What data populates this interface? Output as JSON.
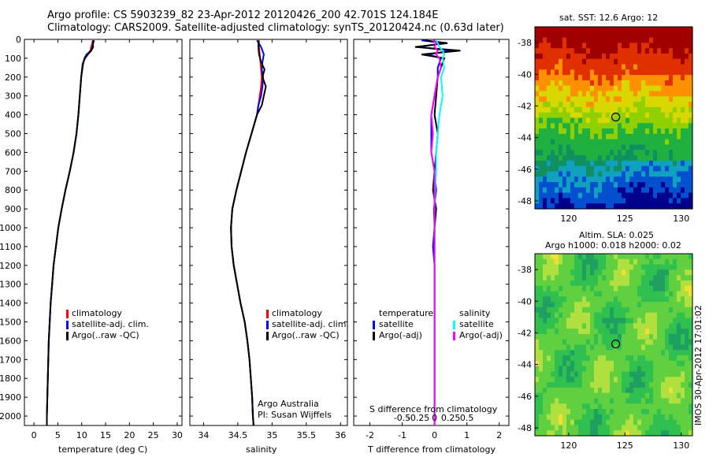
{
  "title_line1": "Argo profile: CS 5903239_82 23-Apr-2012 20120426_200 42.701S 124.184E",
  "title_line2": "Climatology: CARS2009. Satellite-adjusted climatology: synTS_20120424.nc (0.63d later)",
  "stamp": "IMOS 30-Apr-2012 17:01:02",
  "colors": {
    "climatology": "#ff0000",
    "satellite": "#0000ff",
    "argo": "#000000",
    "sal_satellite": "#00ffff",
    "sal_argo": "#ff00ff"
  },
  "chart_data": [
    {
      "type": "line",
      "id": "temperature",
      "xlabel": "temperature (deg C)",
      "xlim": [
        -2,
        31
      ],
      "xticks": [
        0,
        5,
        10,
        15,
        20,
        25,
        30
      ],
      "ylim": [
        2050,
        0
      ],
      "yticks": [
        0,
        100,
        200,
        300,
        400,
        500,
        600,
        700,
        800,
        900,
        1000,
        1100,
        1200,
        1300,
        1400,
        1500,
        1600,
        1700,
        1800,
        1900,
        2000
      ],
      "legend": [
        "climatology",
        "satellite-adj. clim.",
        "Argo(..raw -QC)"
      ],
      "depth": [
        5,
        20,
        40,
        60,
        80,
        100,
        130,
        200,
        300,
        400,
        500,
        600,
        700,
        800,
        900,
        1000,
        1100,
        1200,
        1300,
        1400,
        1500,
        1600,
        1700,
        1800,
        1900,
        2000,
        2050
      ],
      "series": [
        {
          "name": "climatology",
          "values": [
            12.3,
            12.2,
            12.0,
            11.8,
            11.2,
            10.6,
            10.2,
            9.9,
            9.6,
            9.3,
            8.9,
            8.3,
            7.5,
            6.6,
            5.8,
            5.1,
            4.6,
            4.1,
            3.8,
            3.5,
            3.3,
            3.1,
            3.0,
            2.9,
            2.8,
            2.7,
            2.7
          ]
        },
        {
          "name": "satellite-adj. clim.",
          "values": [
            12.6,
            12.4,
            12.2,
            12.0,
            11.3,
            10.7,
            10.2,
            9.9,
            9.6,
            9.3,
            8.9,
            8.3,
            7.5,
            6.6,
            5.8,
            5.1,
            4.6,
            4.1,
            3.8,
            3.5,
            3.3,
            3.1,
            3.0,
            2.9,
            2.8,
            2.7,
            2.7
          ]
        },
        {
          "name": "Argo(..raw -QC)",
          "values": [
            12.5,
            12.3,
            12.4,
            12.0,
            11.0,
            10.6,
            10.3,
            9.9,
            9.6,
            9.3,
            8.9,
            8.3,
            7.5,
            6.6,
            5.8,
            5.1,
            4.6,
            4.1,
            3.8,
            3.5,
            3.3,
            3.1,
            3.0,
            2.9,
            2.8,
            2.7,
            2.7
          ]
        }
      ]
    },
    {
      "type": "line",
      "id": "salinity",
      "xlabel": "salinity",
      "xlim": [
        33.8,
        36.1
      ],
      "xticks": [
        34,
        34.5,
        35,
        35.5,
        36
      ],
      "ylim": [
        2050,
        0
      ],
      "legend": [
        "climatology",
        "satellite-adj. clim.",
        "Argo(..raw -QC)"
      ],
      "annotation": [
        "Argo Australia",
        "PI: Susan Wijffels"
      ],
      "depth": [
        5,
        40,
        80,
        120,
        160,
        200,
        250,
        300,
        350,
        400,
        500,
        600,
        700,
        800,
        900,
        1000,
        1100,
        1200,
        1300,
        1400,
        1500,
        1600,
        1700,
        1800,
        1900,
        2000,
        2050
      ],
      "series": [
        {
          "name": "climatology",
          "values": [
            34.81,
            34.81,
            34.82,
            34.83,
            34.84,
            34.85,
            34.84,
            34.82,
            34.8,
            34.78,
            34.7,
            34.62,
            34.55,
            34.48,
            34.42,
            34.4,
            34.41,
            34.44,
            34.49,
            34.54,
            34.6,
            34.64,
            34.67,
            34.69,
            34.71,
            34.72,
            34.73
          ]
        },
        {
          "name": "satellite-adj. clim.",
          "values": [
            34.78,
            34.84,
            34.88,
            34.86,
            34.85,
            34.87,
            34.86,
            34.84,
            34.8,
            34.78,
            34.7,
            34.62,
            34.55,
            34.48,
            34.42,
            34.4,
            34.41,
            34.44,
            34.49,
            34.54,
            34.6,
            34.64,
            34.67,
            34.69,
            34.71,
            34.72,
            34.73
          ]
        },
        {
          "name": "Argo(..raw -QC)",
          "values": [
            34.8,
            34.8,
            34.81,
            34.84,
            34.89,
            34.86,
            34.91,
            34.88,
            34.85,
            34.78,
            34.7,
            34.62,
            34.55,
            34.48,
            34.42,
            34.4,
            34.41,
            34.44,
            34.49,
            34.54,
            34.6,
            34.64,
            34.67,
            34.69,
            34.71,
            34.72,
            34.73
          ]
        }
      ]
    },
    {
      "type": "line",
      "id": "difference",
      "xlabel": "T difference from climatology",
      "xlabel2": "S difference from climatology",
      "xlim": [
        -2.5,
        2.3
      ],
      "xticks": [
        -2,
        -1,
        0,
        1,
        2
      ],
      "s_ticks": [
        "-0.5",
        "-0.25",
        "0",
        "0.25",
        "0.5"
      ],
      "s_tick_values": [
        -1,
        -0.5,
        0,
        0.5,
        1
      ],
      "ylim": [
        2050,
        0
      ],
      "legend_titles": [
        "temperature",
        "salinity"
      ],
      "legend": [
        "satellite",
        "Argo(-adj)",
        "satellite",
        "Argo(-adj)"
      ],
      "depth": [
        5,
        20,
        40,
        60,
        80,
        100,
        150,
        200,
        300,
        400,
        500,
        600,
        700,
        800,
        900,
        1000,
        1100,
        1200,
        1300,
        1400,
        1500,
        1600,
        1700,
        1800,
        1900,
        2000,
        2050
      ],
      "series": [
        {
          "name": "T satellite",
          "values": [
            -0.4,
            0.3,
            -0.5,
            0.5,
            -0.2,
            0.2,
            0.1,
            0.1,
            0.0,
            -0.1,
            -0.1,
            -0.1,
            0.0,
            0.05,
            -0.02,
            0.0,
            -0.05,
            0.0,
            0.0,
            0.0,
            0.0,
            0.0,
            0.0,
            0.0,
            0.0,
            0.0,
            0.0
          ]
        },
        {
          "name": "T Argo(-adj)",
          "values": [
            -0.3,
            0.4,
            -0.6,
            0.8,
            -0.4,
            0.3,
            0.2,
            0.1,
            0.05,
            0.0,
            0.1,
            0.05,
            0.0,
            -0.05,
            0.05,
            0.0,
            0.0,
            0.0,
            0.0,
            0.0,
            0.0,
            0.0,
            0.0,
            0.0,
            0.0,
            0.0,
            0.0
          ]
        },
        {
          "name": "S satellite",
          "values": [
            0.05,
            0.1,
            0.15,
            0.25,
            0.3,
            0.25,
            0.3,
            0.2,
            0.25,
            0.15,
            0.1,
            0.05,
            0.05,
            0.02,
            0.0,
            0.0,
            0.0,
            0.0,
            0.0,
            0.0,
            0.0,
            0.0,
            0.0,
            0.0,
            0.0,
            0.0,
            0.0
          ]
        },
        {
          "name": "S Argo(-adj)",
          "values": [
            -0.05,
            0.05,
            0.0,
            0.1,
            0.05,
            0.15,
            0.2,
            0.1,
            0.0,
            -0.1,
            -0.05,
            -0.1,
            0.0,
            0.0,
            0.0,
            0.0,
            0.0,
            0.0,
            0.0,
            0.0,
            0.0,
            0.0,
            0.0,
            0.0,
            0.0,
            0.0,
            0.0
          ]
        }
      ]
    },
    {
      "type": "heatmap",
      "id": "sst_map",
      "title": "sat. SST: 12.6 Argo: 12",
      "xlim": [
        117,
        131
      ],
      "ylim": [
        -48.5,
        -37
      ],
      "xticks": [
        120,
        125,
        130
      ],
      "yticks": [
        -38,
        -40,
        -42,
        -44,
        -46,
        -48
      ],
      "marker": {
        "lon": 124.184,
        "lat": -42.701
      }
    },
    {
      "type": "heatmap",
      "id": "sla_map",
      "title": "Altim. SLA: 0.025",
      "subtitle": "Argo h1000: 0.018 h2000: 0.02",
      "xlim": [
        117,
        131
      ],
      "ylim": [
        -48.5,
        -37
      ],
      "xticks": [
        120,
        125,
        130
      ],
      "yticks": [
        -38,
        -40,
        -42,
        -44,
        -46,
        -48
      ],
      "marker": {
        "lon": 124.184,
        "lat": -42.701
      }
    }
  ]
}
